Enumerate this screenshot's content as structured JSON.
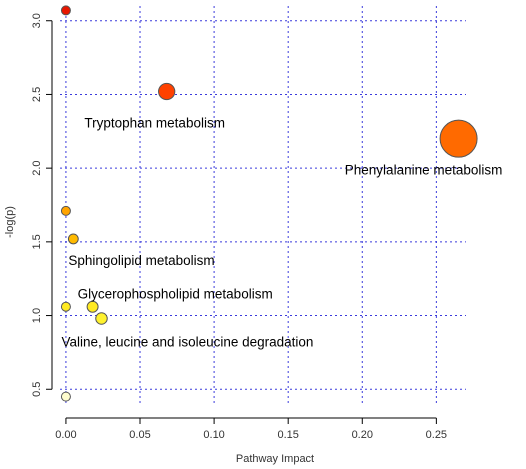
{
  "chart_data": {
    "type": "scatter",
    "title": "",
    "xlabel": "Pathway Impact",
    "ylabel": "-log(p)",
    "xlim": [
      -0.004,
      0.27
    ],
    "ylim": [
      0.4,
      3.1
    ],
    "xticks": [
      "0.00",
      "0.05",
      "0.10",
      "0.15",
      "0.20",
      "0.25"
    ],
    "xtick_values": [
      0,
      0.05,
      0.1,
      0.15,
      0.2,
      0.25
    ],
    "yticks": [
      "0.5",
      "1.0",
      "1.5",
      "2.0",
      "2.5",
      "3.0"
    ],
    "ytick_values": [
      0.5,
      1.0,
      1.5,
      2.0,
      2.5,
      3.0
    ],
    "grid": true,
    "grid_style": "dotted blue",
    "colormap": [
      "#fffde0",
      "#ffff40",
      "#ffd200",
      "#ffa000",
      "#ff6a00",
      "#ff3000",
      "#e61400"
    ],
    "points": [
      {
        "x": 0.0,
        "y": 3.07,
        "size": 0.0,
        "label": ""
      },
      {
        "x": 0.068,
        "y": 2.52,
        "size": 0.26,
        "label": "Tryptophan metabolism"
      },
      {
        "x": 0.265,
        "y": 2.2,
        "size": 1.0,
        "label": "Phenylalanine metabolism"
      },
      {
        "x": 0.0,
        "y": 1.71,
        "size": 0.0,
        "label": ""
      },
      {
        "x": 0.005,
        "y": 1.52,
        "size": 0.03,
        "label": "Sphingolipid metabolism"
      },
      {
        "x": 0.0,
        "y": 1.06,
        "size": 0.0,
        "label": ""
      },
      {
        "x": 0.018,
        "y": 1.06,
        "size": 0.07,
        "label": "Glycerophospholipid metabolism"
      },
      {
        "x": 0.024,
        "y": 0.98,
        "size": 0.09,
        "label": "Valine, leucine and isoleucine degradation"
      },
      {
        "x": 0.0,
        "y": 0.45,
        "size": 0.0,
        "label": ""
      }
    ]
  }
}
